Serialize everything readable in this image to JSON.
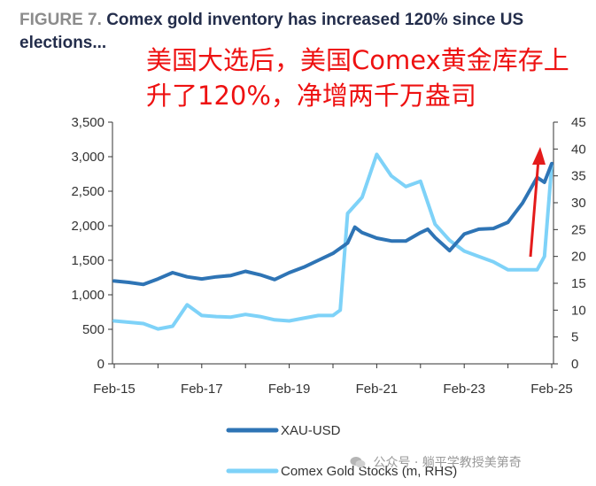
{
  "figure": {
    "label": "FIGURE 7.",
    "title": "Comex gold inventory has increased 120% since US elections..."
  },
  "annotation": {
    "text": "美国大选后，美国Comex黄金库存上升了120%，净增两千万盎司",
    "color": "#ee1111"
  },
  "watermark": {
    "text": "公众号 · 躺平学教授美第奇",
    "icon": "wechat-icon"
  },
  "chart_data": {
    "type": "line",
    "x_ticks": [
      "Feb-15",
      "Feb-17",
      "Feb-19",
      "Feb-21",
      "Feb-23",
      "Feb-25"
    ],
    "left_axis": {
      "ticks": [
        "0",
        "500",
        "1,000",
        "1,500",
        "2,000",
        "2,500",
        "3,000",
        "3,500"
      ],
      "ylim": [
        0,
        3500
      ]
    },
    "right_axis": {
      "ticks": [
        "0",
        "5",
        "10",
        "15",
        "20",
        "25",
        "30",
        "35",
        "40",
        "45"
      ],
      "ylim": [
        0,
        45
      ]
    },
    "grid": false,
    "legend_position": "bottom",
    "series": [
      {
        "name": "XAU-USD",
        "axis": "left",
        "color": "#2e74b5",
        "x": [
          "2015-02",
          "2015-06",
          "2015-10",
          "2016-02",
          "2016-06",
          "2016-10",
          "2017-02",
          "2017-06",
          "2017-10",
          "2018-02",
          "2018-06",
          "2018-10",
          "2019-02",
          "2019-06",
          "2019-10",
          "2020-02",
          "2020-06",
          "2020-08",
          "2020-10",
          "2021-02",
          "2021-06",
          "2021-10",
          "2022-02",
          "2022-04",
          "2022-06",
          "2022-10",
          "2023-02",
          "2023-06",
          "2023-10",
          "2024-02",
          "2024-06",
          "2024-10",
          "2024-12",
          "2025-02"
        ],
        "values": [
          1200,
          1180,
          1150,
          1230,
          1320,
          1260,
          1230,
          1260,
          1280,
          1340,
          1290,
          1220,
          1320,
          1400,
          1500,
          1600,
          1750,
          1980,
          1900,
          1820,
          1780,
          1780,
          1900,
          1950,
          1830,
          1640,
          1880,
          1950,
          1960,
          2050,
          2330,
          2700,
          2630,
          2900
        ]
      },
      {
        "name": "Comex Gold Stocks (m, RHS)",
        "axis": "right",
        "color": "#7ed2f8",
        "x": [
          "2015-02",
          "2015-10",
          "2016-02",
          "2016-06",
          "2016-10",
          "2017-02",
          "2017-06",
          "2017-10",
          "2018-02",
          "2018-06",
          "2018-10",
          "2019-02",
          "2019-06",
          "2019-10",
          "2020-02",
          "2020-04",
          "2020-06",
          "2020-10",
          "2021-02",
          "2021-06",
          "2021-10",
          "2022-02",
          "2022-06",
          "2022-10",
          "2023-02",
          "2023-06",
          "2023-10",
          "2024-02",
          "2024-06",
          "2024-10",
          "2024-12",
          "2025-02"
        ],
        "values": [
          8,
          7.5,
          6.5,
          7,
          11,
          9,
          8.8,
          8.7,
          9.2,
          8.8,
          8.2,
          8,
          8.5,
          9,
          9,
          10,
          28,
          31,
          39,
          35,
          33,
          34,
          26,
          23,
          21,
          20,
          19,
          17.5,
          17.5,
          17.5,
          20,
          37
        ]
      }
    ]
  }
}
